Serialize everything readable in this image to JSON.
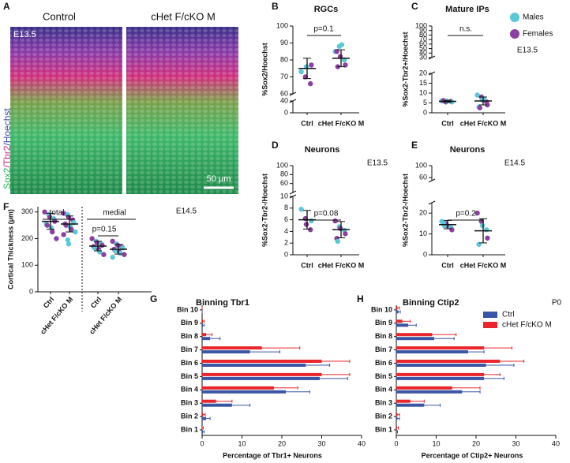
{
  "image_panel": {
    "letter": "A",
    "labels": [
      "Control",
      "cHet F/cKO M"
    ],
    "stage": "E13.5",
    "stain": [
      "Sox2",
      "/Tbr2",
      "/Hoechst"
    ],
    "scale_bar": "50 µm"
  },
  "chart_data": [
    {
      "type": "strip",
      "panel": "B",
      "title": "RGCs",
      "y_label": "%Sox2/Hoechst",
      "categories": [
        "Ctrl",
        "cHet F/cKO M"
      ],
      "y_segments": [
        {
          "ylim": [
            0,
            40
          ],
          "yticks": [
            0,
            40
          ]
        },
        {
          "ylim": [
            60,
            100
          ],
          "yticks": [
            60,
            70,
            80,
            90,
            100
          ]
        }
      ],
      "groups": [
        {
          "values": [
            73,
            70,
            76,
            66,
            77
          ],
          "colors": [
            "#5bc8d8",
            "#8b3fa0",
            "#5bc8d8",
            "#8b3fa0",
            "#8b3fa0"
          ],
          "mean": 75,
          "sd": 6
        },
        {
          "values": [
            85,
            88,
            82,
            80,
            77,
            85,
            76,
            89
          ],
          "colors": [
            "#5bc8d8",
            "#5bc8d8",
            "#8b3fa0",
            "#5bc8d8",
            "#8b3fa0",
            "#8b3fa0",
            "#8b3fa0",
            "#5bc8d8"
          ],
          "mean": 81,
          "sd": 5
        }
      ],
      "annotations": [
        "p=0.1"
      ]
    },
    {
      "type": "strip",
      "panel": "C",
      "title": "Mature IPs",
      "y_label": "%Sox2-Tbr2+/Hoechst",
      "categories": [
        "Ctrl",
        "cHet F/cKO M"
      ],
      "y_segments": [
        {
          "ylim": [
            0,
            20
          ],
          "yticks": [
            0,
            5,
            10,
            15,
            20
          ]
        },
        {
          "ylim": [
            30,
            100
          ],
          "yticks": [
            30,
            40,
            50,
            60,
            70,
            80,
            90,
            100
          ]
        }
      ],
      "groups": [
        {
          "values": [
            6,
            5.5,
            6,
            5.8,
            5.5,
            6.2
          ],
          "colors": [
            "#5bc8d8",
            "#8b3fa0",
            "#5bc8d8",
            "#8b3fa0",
            "#5bc8d8",
            "#8b3fa0"
          ],
          "mean": 5.8,
          "sd": 0.5
        },
        {
          "values": [
            9,
            8,
            6.5,
            5.5,
            4,
            3,
            2.5,
            7
          ],
          "colors": [
            "#5bc8d8",
            "#8b3fa0",
            "#5bc8d8",
            "#8b3fa0",
            "#8b3fa0",
            "#5bc8d8",
            "#8b3fa0",
            "#5bc8d8"
          ],
          "mean": 6,
          "sd": 2
        }
      ],
      "annotations": [
        "n.s.",
        "E13.5"
      ],
      "legend": [
        {
          "name": "Males",
          "color": "#5bc8d8"
        },
        {
          "name": "Females",
          "color": "#8b3fa0"
        }
      ]
    },
    {
      "type": "strip",
      "panel": "D",
      "title": "Neurons",
      "y_label": "%Sox2-Tbr2-/Hoechst",
      "categories": [
        "Ctrl",
        "cHet F/cKO M"
      ],
      "y_segments": [
        {
          "ylim": [
            0,
            10
          ],
          "yticks": [
            0,
            2,
            4,
            6,
            8,
            10
          ]
        },
        {
          "ylim": [
            40,
            100
          ],
          "yticks": [
            60,
            80,
            100
          ]
        }
      ],
      "groups": [
        {
          "values": [
            7.8,
            6.2,
            5.2,
            4.3,
            5.8
          ],
          "colors": [
            "#5bc8d8",
            "#8b3fa0",
            "#8b3fa0",
            "#8b3fa0",
            "#5bc8d8"
          ],
          "mean": 6,
          "sd": 1.6
        },
        {
          "values": [
            5.8,
            4.8,
            4.5,
            4.2,
            3.6,
            2.8,
            2.3
          ],
          "colors": [
            "#8b3fa0",
            "#5bc8d8",
            "#8b3fa0",
            "#5bc8d8",
            "#8b3fa0",
            "#8b3fa0",
            "#5bc8d8"
          ],
          "mean": 4.3,
          "sd": 1.4
        }
      ],
      "annotations": [
        "p=0.08",
        "E13.5"
      ]
    },
    {
      "type": "strip",
      "panel": "E",
      "title": "Neurons",
      "y_label": "%Sox2-Tbr2-/Hoechst",
      "categories": [
        "Ctrl",
        "cHet F/cKO M"
      ],
      "y_segments": [
        {
          "ylim": [
            0,
            25
          ],
          "yticks": [
            0,
            10,
            20
          ]
        },
        {
          "ylim": [
            50,
            100
          ],
          "yticks": [
            60,
            100
          ]
        }
      ],
      "groups": [
        {
          "values": [
            16,
            15,
            14,
            13,
            12,
            15.5,
            14
          ],
          "colors": [
            "#5bc8d8",
            "#8b3fa0",
            "#8b3fa0",
            "#5bc8d8",
            "#8b3fa0",
            "#5bc8d8",
            "#5bc8d8"
          ],
          "mean": 14.5,
          "sd": 2
        },
        {
          "values": [
            20,
            16,
            14,
            12,
            8,
            5
          ],
          "colors": [
            "#8b3fa0",
            "#8b3fa0",
            "#5bc8d8",
            "#5bc8d8",
            "#8b3fa0",
            "#5bc8d8"
          ],
          "mean": 11.5,
          "sd": 5.8
        }
      ],
      "annotations": [
        "p=0.2",
        "E14.5"
      ]
    },
    {
      "type": "strip",
      "panel": "F",
      "y_label": "Cortical Thickness (µm)",
      "categories": [
        "Ctrl",
        "cHet F/cKO M",
        "Ctrl",
        "cHet F/cKO M"
      ],
      "group_labels": [
        "total",
        "medial"
      ],
      "y_segments": [
        {
          "ylim": [
            0,
            320
          ],
          "yticks": [
            0,
            100,
            200,
            300
          ]
        }
      ],
      "groups": [
        {
          "values": [
            300,
            290,
            280,
            275,
            265,
            255,
            250,
            240,
            225,
            200
          ],
          "colors": [
            "#8b3fa0",
            "#5bc8d8",
            "#8b3fa0",
            "#5bc8d8",
            "#8b3fa0",
            "#5bc8d8",
            "#8b3fa0",
            "#5bc8d8",
            "#8b3fa0",
            "#8b3fa0"
          ],
          "mean": 265,
          "sd": 30
        },
        {
          "values": [
            295,
            290,
            280,
            270,
            260,
            255,
            250,
            245,
            235,
            225,
            215,
            195,
            180
          ],
          "colors": [
            "#8b3fa0",
            "#5bc8d8",
            "#8b3fa0",
            "#8b3fa0",
            "#5bc8d8",
            "#8b3fa0",
            "#8b3fa0",
            "#5bc8d8",
            "#8b3fa0",
            "#5bc8d8",
            "#8b3fa0",
            "#5bc8d8",
            "#5bc8d8"
          ],
          "mean": 255,
          "sd": 30
        },
        {
          "values": [
            200,
            190,
            185,
            180,
            175,
            170,
            165,
            160,
            150,
            140
          ],
          "colors": [
            "#8b3fa0",
            "#5bc8d8",
            "#8b3fa0",
            "#5bc8d8",
            "#8b3fa0",
            "#8b3fa0",
            "#5bc8d8",
            "#8b3fa0",
            "#5bc8d8",
            "#8b3fa0"
          ],
          "mean": 172,
          "sd": 18
        },
        {
          "values": [
            190,
            180,
            175,
            170,
            165,
            160,
            155,
            150,
            145,
            140,
            130
          ],
          "colors": [
            "#8b3fa0",
            "#5bc8d8",
            "#8b3fa0",
            "#8b3fa0",
            "#5bc8d8",
            "#8b3fa0",
            "#5bc8d8",
            "#8b3fa0",
            "#5bc8d8",
            "#8b3fa0",
            "#5bc8d8"
          ],
          "mean": 160,
          "sd": 18
        }
      ],
      "annotations": [
        "p=0.15",
        "E14.5"
      ]
    },
    {
      "type": "hbar",
      "panel": "G",
      "title": "Binning Tbr1",
      "x_label": "Percentage of Tbr1+ Neurons",
      "categories": [
        "Bin 1",
        "Bin 2",
        "Bin 3",
        "Bin 4",
        "Bin 5",
        "Bin 6",
        "Bin 7",
        "Bin 8",
        "Bin 9",
        "Bin 10"
      ],
      "xlim": [
        0,
        40
      ],
      "xticks": [
        0,
        10,
        20,
        30,
        40
      ],
      "legend": false,
      "series": [
        {
          "color": "#3a55a4",
          "values": [
            0.2,
            1,
            7.5,
            21,
            29.5,
            26,
            12,
            2,
            0.2,
            0
          ],
          "errors": [
            0.3,
            1,
            4.5,
            6,
            7,
            6,
            7.5,
            2.5,
            0.3,
            0
          ]
        },
        {
          "color": "#e8262b",
          "values": [
            0.1,
            0.3,
            3.5,
            18,
            30,
            30,
            15,
            1,
            0.2,
            0
          ],
          "errors": [
            0.2,
            0.5,
            4,
            6,
            7,
            7,
            9.5,
            1.5,
            0.3,
            0
          ]
        }
      ]
    },
    {
      "type": "hbar",
      "panel": "H",
      "title": "Binning Ctip2",
      "x_label": "Percentage of Ctip2+ Neurons",
      "categories": [
        "Bin 1",
        "Bin 2",
        "Bin 3",
        "Bin 4",
        "Bin 5",
        "Bin 6",
        "Bin 7",
        "Bin 8",
        "Bin 9",
        "Bin 10"
      ],
      "xlim": [
        0,
        40
      ],
      "xticks": [
        0,
        10,
        20,
        30,
        40
      ],
      "legend": true,
      "annotations": [
        "P0"
      ],
      "series": [
        {
          "name": "Ctrl",
          "color": "#3a55a4",
          "values": [
            0,
            0.3,
            7,
            16.5,
            22,
            22.5,
            18,
            9.5,
            3,
            0.5
          ],
          "errors": [
            0.3,
            0.5,
            4,
            4.5,
            5,
            7,
            4,
            5,
            2,
            0.5
          ]
        },
        {
          "name": "cHet F/cKO M",
          "color": "#e8262b",
          "values": [
            0.2,
            0.3,
            3.5,
            14,
            22,
            26,
            22,
            9,
            1.5,
            0.3
          ],
          "errors": [
            0.3,
            0.5,
            3.5,
            7,
            4,
            6,
            7,
            6,
            2,
            0.5
          ]
        }
      ]
    }
  ]
}
